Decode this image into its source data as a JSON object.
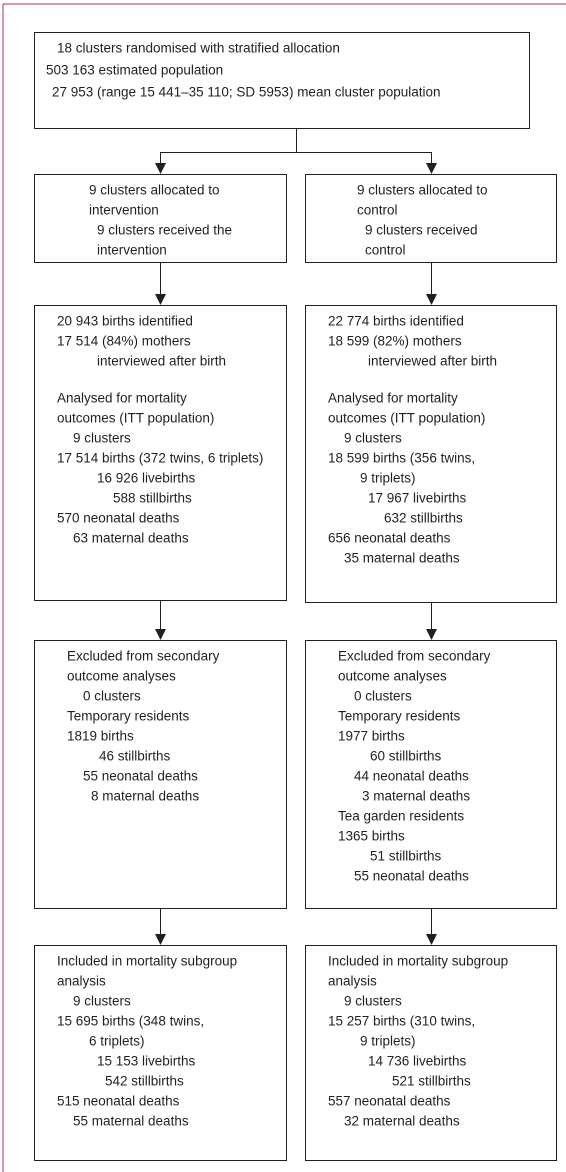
{
  "nodes": [
    {
      "lines": [
        "18 clusters randomised with stratified allocation",
        "503 163 estimated population",
        "27 953 (range 15 441–35 110; SD 5953) mean cluster population"
      ]
    },
    {
      "lines": [
        "9 clusters allocated to",
        "intervention",
        "9 clusters received the",
        "intervention"
      ]
    },
    {
      "lines": [
        "9 clusters allocated to",
        "control",
        "9 clusters received",
        "control"
      ]
    },
    {
      "lines": [
        "20 943 births identified",
        "17 514 (84%) mothers",
        "interviewed after birth",
        "Analysed for mortality",
        "outcomes (ITT population)",
        "9 clusters",
        "17 514 births (372 twins, 6 triplets)",
        "16 926 livebirths",
        "588 stillbirths",
        "570 neonatal deaths",
        "63 maternal deaths"
      ]
    },
    {
      "lines": [
        "22 774 births identified",
        "18 599 (82%) mothers",
        "interviewed after birth",
        "Analysed for mortality",
        "outcomes (ITT population)",
        "9 clusters",
        "18 599 births (356 twins,",
        "9 triplets)",
        "17 967 livebirths",
        "632 stillbirths",
        "656 neonatal deaths",
        "35 maternal deaths"
      ]
    },
    {
      "lines": [
        "Excluded from secondary",
        "outcome analyses",
        "0 clusters",
        "Temporary residents",
        "1819 births",
        "46 stillbirths",
        "55 neonatal deaths",
        "8 maternal deaths"
      ]
    },
    {
      "lines": [
        "Excluded from secondary",
        "outcome analyses",
        "0 clusters",
        "Temporary residents",
        "1977 births",
        "60 stillbirths",
        "44 neonatal deaths",
        "3 maternal deaths",
        "Tea garden residents",
        "1365 births",
        "51 stillbirths",
        "55 neonatal deaths"
      ]
    },
    {
      "lines": [
        "Included in mortality subgroup",
        "analysis",
        "9 clusters",
        "15 695 births (348 twins,",
        "6 triplets)",
        "15 153 livebirths",
        "542 stillbirths",
        "515 neonatal deaths",
        "55 maternal deaths"
      ]
    },
    {
      "lines": [
        "Included in mortality subgroup",
        "analysis",
        "9 clusters",
        "15 257 births (310 twins,",
        "9 triplets)",
        "14 736 livebirths",
        "521 stillbirths",
        "557 neonatal deaths",
        "32 maternal deaths"
      ]
    }
  ]
}
